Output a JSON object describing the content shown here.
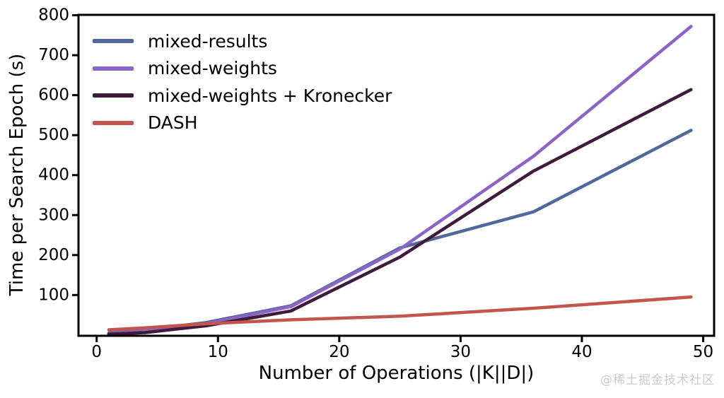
{
  "figure": {
    "background": "#ffffff",
    "axis_color": "#000000",
    "tick_label_color": "#000000"
  },
  "watermark": {
    "text": "@稀土掘金技术社区",
    "color": "#c9c9c9"
  },
  "chart_data": {
    "type": "line",
    "title": "",
    "xlabel": "Number of Operations (|K||D|)",
    "ylabel": "Time per Search Epoch (s)",
    "x_ticks": [
      0,
      10,
      20,
      30,
      40,
      50
    ],
    "y_ticks": [
      100,
      200,
      300,
      400,
      500,
      600,
      700,
      800
    ],
    "xlim": [
      -1.5,
      50.9
    ],
    "ylim": [
      -2,
      801
    ],
    "grid": false,
    "legend_position": "upper left",
    "line_width": 4.5,
    "x": [
      1,
      4,
      9,
      16,
      25,
      36,
      49
    ],
    "series": [
      {
        "name": "mixed-results",
        "color": "#50689C",
        "values": [
          5,
          13,
          31,
          73,
          218,
          308,
          512
        ]
      },
      {
        "name": "mixed-weights",
        "color": "#8B64C8",
        "values": [
          3,
          10,
          28,
          71,
          215,
          447,
          772
        ]
      },
      {
        "name": "mixed-weights + Kronecker",
        "color": "#3E1A3D",
        "values": [
          2,
          6,
          23,
          60,
          195,
          410,
          614
        ]
      },
      {
        "name": "DASH",
        "color": "#C4554D",
        "values": [
          13,
          18,
          28,
          38,
          47,
          67,
          95
        ]
      }
    ]
  }
}
